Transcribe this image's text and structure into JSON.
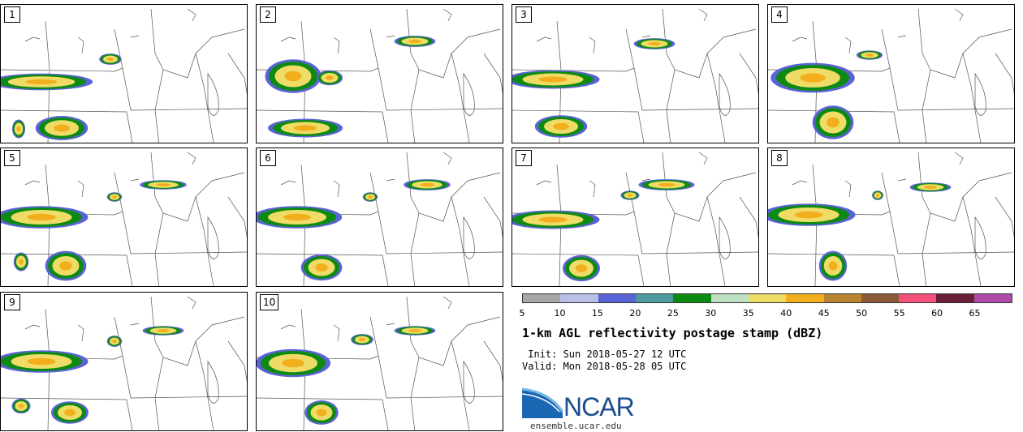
{
  "panels": [
    {
      "label": "1"
    },
    {
      "label": "2"
    },
    {
      "label": "3"
    },
    {
      "label": "4"
    },
    {
      "label": "5"
    },
    {
      "label": "6"
    },
    {
      "label": "7"
    },
    {
      "label": "8"
    },
    {
      "label": "9"
    },
    {
      "label": "10"
    }
  ],
  "colorbar": {
    "ticks": [
      "5",
      "10",
      "15",
      "20",
      "25",
      "30",
      "35",
      "40",
      "45",
      "50",
      "55",
      "60",
      "65"
    ],
    "colors": [
      "#a6a6a6",
      "#b8c0ea",
      "#5a63d6",
      "#4f9a9e",
      "#0d8a12",
      "#bfe0c4",
      "#eedc67",
      "#f2ae1c",
      "#b9832f",
      "#8a5a3a",
      "#f2517a",
      "#6b1e3a",
      "#b04aa8"
    ]
  },
  "title": "1-km AGL reflectivity postage stamp (dBZ)",
  "init": " Init: Sun 2018-05-27 12 UTC",
  "valid": "Valid: Mon 2018-05-28 05 UTC",
  "logo": {
    "name": "NCAR",
    "url": "ensemble.ucar.edu"
  }
}
